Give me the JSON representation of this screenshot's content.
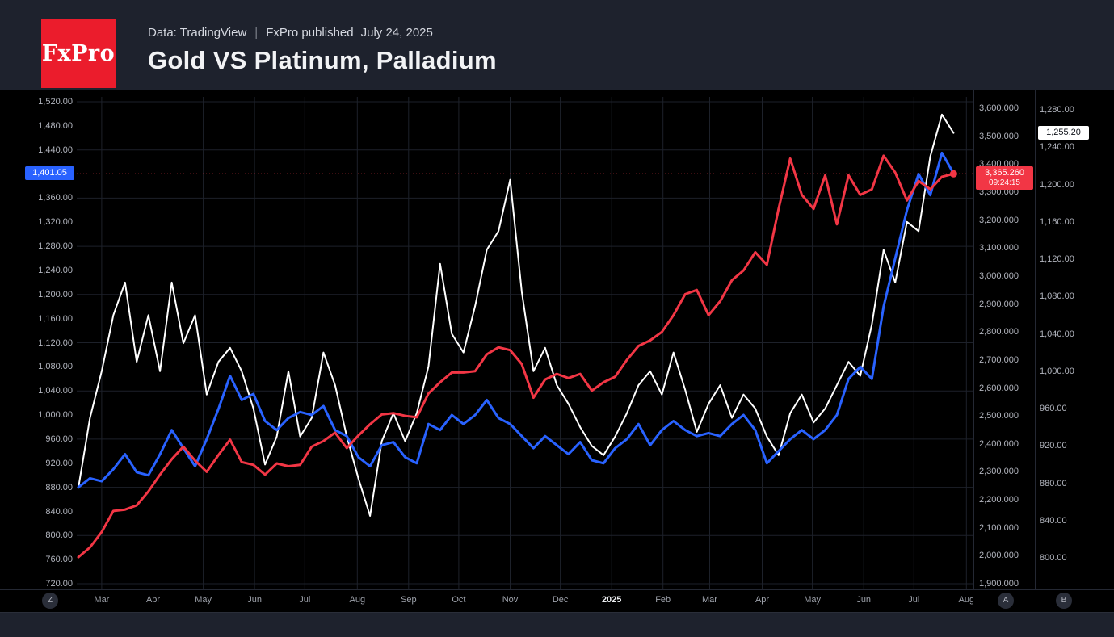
{
  "header": {
    "logo_text": "FxPro",
    "source_label": "Data: TradingView",
    "separator": "|",
    "published_label": "FxPro published",
    "published_date": "July 24, 2025",
    "title": "Gold VS Platinum, Palladium"
  },
  "toolbar": {
    "timezone_button": "Z",
    "axis_a_button": "A",
    "axis_b_button": "B"
  },
  "badges": {
    "platinum_last": "1,401.05",
    "gold_last": "3,365.260",
    "gold_countdown": "09:24:15",
    "palladium_last": "1,255.20"
  },
  "colors": {
    "gold": "#F23645",
    "platinum": "#2962FF",
    "palladium": "#FFFFFF",
    "logo_red": "#EB1C2C",
    "header_bg": "#1E222D",
    "axis_text": "#B2B5BE",
    "background": "#000000"
  },
  "chart_data": {
    "type": "line",
    "title": "Gold VS Platinum, Palladium",
    "legend": "none",
    "grid": true,
    "x": [
      "2024-02-16",
      "2024-02-23",
      "2024-03-01",
      "2024-03-08",
      "2024-03-15",
      "2024-03-22",
      "2024-03-29",
      "2024-04-05",
      "2024-04-12",
      "2024-04-19",
      "2024-04-26",
      "2024-05-03",
      "2024-05-10",
      "2024-05-17",
      "2024-05-24",
      "2024-05-31",
      "2024-06-07",
      "2024-06-14",
      "2024-06-21",
      "2024-06-28",
      "2024-07-05",
      "2024-07-12",
      "2024-07-19",
      "2024-07-26",
      "2024-08-02",
      "2024-08-09",
      "2024-08-16",
      "2024-08-23",
      "2024-08-30",
      "2024-09-06",
      "2024-09-13",
      "2024-09-20",
      "2024-09-27",
      "2024-10-04",
      "2024-10-11",
      "2024-10-18",
      "2024-10-25",
      "2024-11-01",
      "2024-11-08",
      "2024-11-15",
      "2024-11-22",
      "2024-11-29",
      "2024-12-06",
      "2024-12-13",
      "2024-12-20",
      "2024-12-27",
      "2025-01-03",
      "2025-01-10",
      "2025-01-17",
      "2025-01-24",
      "2025-01-31",
      "2025-02-07",
      "2025-02-14",
      "2025-02-21",
      "2025-02-28",
      "2025-03-07",
      "2025-03-14",
      "2025-03-21",
      "2025-03-28",
      "2025-04-04",
      "2025-04-11",
      "2025-04-18",
      "2025-04-25",
      "2025-05-02",
      "2025-05-09",
      "2025-05-16",
      "2025-05-23",
      "2025-05-30",
      "2025-06-06",
      "2025-06-13",
      "2025-06-20",
      "2025-06-27",
      "2025-07-04",
      "2025-07-11",
      "2025-07-18",
      "2025-07-24"
    ],
    "series": [
      {
        "name": "Gold",
        "color": "#F23645",
        "axis": "gold",
        "line_width": 3,
        "last_value": 3365.26,
        "values": [
          1995,
          2030,
          2085,
          2160,
          2165,
          2180,
          2230,
          2290,
          2345,
          2390,
          2340,
          2300,
          2360,
          2415,
          2335,
          2325,
          2290,
          2330,
          2320,
          2325,
          2390,
          2410,
          2440,
          2385,
          2430,
          2470,
          2505,
          2510,
          2500,
          2495,
          2580,
          2620,
          2655,
          2655,
          2660,
          2720,
          2745,
          2735,
          2685,
          2565,
          2630,
          2650,
          2635,
          2650,
          2590,
          2620,
          2640,
          2700,
          2750,
          2770,
          2800,
          2860,
          2935,
          2950,
          2860,
          2910,
          2985,
          3020,
          3085,
          3040,
          3240,
          3420,
          3290,
          3240,
          3360,
          3185,
          3360,
          3290,
          3310,
          3430,
          3370,
          3270,
          3340,
          3310,
          3355,
          3365.26
        ]
      },
      {
        "name": "Platinum",
        "color": "#2962FF",
        "axis": "platinum",
        "line_width": 3,
        "last_value": 1401.05,
        "values": [
          880,
          895,
          890,
          910,
          935,
          905,
          900,
          935,
          975,
          945,
          915,
          960,
          1010,
          1065,
          1025,
          1035,
          990,
          975,
          995,
          1005,
          1000,
          1015,
          975,
          965,
          930,
          915,
          950,
          955,
          930,
          920,
          985,
          975,
          1000,
          985,
          1000,
          1025,
          995,
          985,
          965,
          945,
          965,
          950,
          935,
          955,
          925,
          920,
          945,
          960,
          985,
          950,
          975,
          990,
          975,
          965,
          970,
          965,
          985,
          1000,
          975,
          920,
          940,
          960,
          975,
          960,
          975,
          1000,
          1060,
          1080,
          1060,
          1180,
          1260,
          1340,
          1400,
          1365,
          1435,
          1401.05
        ]
      },
      {
        "name": "Palladium",
        "color": "#FFFFFF",
        "axis": "palladium",
        "line_width": 2,
        "last_value": 1255.2,
        "values": [
          875,
          950,
          1000,
          1060,
          1095,
          1010,
          1060,
          1000,
          1095,
          1030,
          1060,
          975,
          1010,
          1025,
          1000,
          960,
          900,
          930,
          1000,
          930,
          950,
          1020,
          985,
          930,
          885,
          845,
          925,
          955,
          925,
          955,
          1005,
          1115,
          1040,
          1020,
          1070,
          1130,
          1150,
          1205,
          1085,
          1000,
          1025,
          985,
          965,
          940,
          920,
          910,
          930,
          955,
          985,
          1000,
          975,
          1020,
          980,
          935,
          965,
          985,
          950,
          975,
          960,
          930,
          910,
          955,
          975,
          945,
          960,
          985,
          1010,
          995,
          1050,
          1130,
          1095,
          1160,
          1150,
          1230,
          1275,
          1255.2
        ]
      }
    ],
    "axes": {
      "platinum": {
        "side": "left",
        "min": 720,
        "max": 1520,
        "step": 40,
        "tick_labels": [
          "1,520.00",
          "1,480.00",
          "1,440.00",
          "1,400.00",
          "1,360.00",
          "1,320.00",
          "1,280.00",
          "1,240.00",
          "1,200.00",
          "1,160.00",
          "1,120.00",
          "1,080.00",
          "1,040.00",
          "1,000.00",
          "960.00",
          "920.00",
          "880.00",
          "840.00",
          "800.00",
          "760.00",
          "720.00"
        ]
      },
      "gold": {
        "side": "right-inner",
        "min": 1900,
        "max": 3600,
        "step": 100,
        "tick_labels": [
          "3,600.000",
          "3,500.000",
          "3,400.000",
          "3,300.000",
          "3,200.000",
          "3,100.000",
          "3,000.000",
          "2,900.000",
          "2,800.000",
          "2,700.000",
          "2,600.000",
          "2,500.000",
          "2,400.000",
          "2,300.000",
          "2,200.000",
          "2,100.000",
          "2,000.000",
          "1,900.000"
        ]
      },
      "palladium": {
        "side": "right-outer",
        "min": 800,
        "max": 1280,
        "step": 40,
        "tick_labels": [
          "1,280.00",
          "1,240.00",
          "1,200.00",
          "1,160.00",
          "1,120.00",
          "1,080.00",
          "1,040.00",
          "1,000.00",
          "960.00",
          "920.00",
          "880.00",
          "840.00",
          "800.00"
        ]
      }
    },
    "x_ticks": [
      {
        "label": "Mar",
        "i": 2
      },
      {
        "label": "Apr",
        "i": 6.4
      },
      {
        "label": "May",
        "i": 10.7
      },
      {
        "label": "Jun",
        "i": 15.1
      },
      {
        "label": "Jul",
        "i": 19.4
      },
      {
        "label": "Aug",
        "i": 23.9
      },
      {
        "label": "Sep",
        "i": 28.3
      },
      {
        "label": "Oct",
        "i": 32.6
      },
      {
        "label": "Nov",
        "i": 37
      },
      {
        "label": "Dec",
        "i": 41.3
      },
      {
        "label": "2025",
        "i": 45.7,
        "bold": true
      },
      {
        "label": "Feb",
        "i": 50.1
      },
      {
        "label": "Mar",
        "i": 54.1
      },
      {
        "label": "Apr",
        "i": 58.6
      },
      {
        "label": "May",
        "i": 62.9
      },
      {
        "label": "Jun",
        "i": 67.3
      },
      {
        "label": "Jul",
        "i": 71.6
      },
      {
        "label": "Aug",
        "i": 76.1
      }
    ]
  }
}
